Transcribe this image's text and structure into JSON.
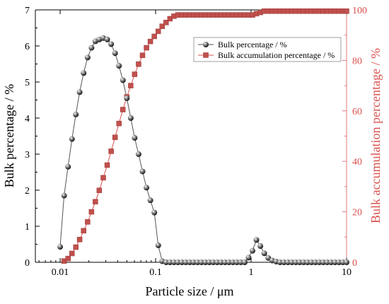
{
  "chart_data": {
    "type": "line",
    "xlabel": "Particle size / μm",
    "ylabel": "Bulk percentage / %",
    "ylabel_right": "Bulk accumulation percentage / %",
    "x_scale": "log",
    "xlim": [
      0.0055,
      10
    ],
    "ylim": [
      0,
      7
    ],
    "ylim_right": [
      0,
      100
    ],
    "x_ticks": [
      0.01,
      0.1,
      1,
      10
    ],
    "x_tick_labels": [
      "0.01",
      "0.1",
      "1",
      "10"
    ],
    "y_ticks": [
      0,
      1,
      2,
      3,
      4,
      5,
      6,
      7
    ],
    "y_tick_labels": [
      "0",
      "1",
      "2",
      "3",
      "4",
      "5",
      "6",
      "7"
    ],
    "y_right_ticks": [
      0,
      20,
      40,
      60,
      80,
      100
    ],
    "y_right_tick_labels": [
      "0",
      "20",
      "40",
      "60",
      "80",
      "100"
    ],
    "grid": false,
    "legend_position": "top-right",
    "series": [
      {
        "name": "Bulk percentage / %",
        "axis": "left",
        "color": "#555555",
        "marker": "sphere",
        "x": [
          0.01,
          0.011,
          0.0121,
          0.0133,
          0.0146,
          0.016,
          0.0176,
          0.0194,
          0.0213,
          0.0234,
          0.0257,
          0.0283,
          0.0311,
          0.0342,
          0.0376,
          0.0413,
          0.0454,
          0.0499,
          0.0549,
          0.0603,
          0.0663,
          0.0729,
          0.0802,
          0.0881,
          0.0969,
          0.1065,
          0.1171,
          0.1287,
          0.1415,
          0.1556,
          0.171,
          0.188,
          0.2067,
          0.2273,
          0.2499,
          0.2747,
          0.302,
          0.332,
          0.365,
          0.4013,
          0.4411,
          0.485,
          0.5332,
          0.5862,
          0.6444,
          0.7084,
          0.7788,
          0.8562,
          0.9412,
          1.0347,
          1.1375,
          1.2505,
          1.3748,
          1.5114,
          1.6616,
          1.8267,
          2.0082,
          2.2077,
          2.4271,
          2.6683,
          2.9334,
          3.2249,
          3.5453,
          3.8976,
          4.2849,
          4.7107,
          5.1788,
          5.6934,
          6.2591,
          6.8811,
          7.5648,
          8.3165,
          9.1429,
          10.0
        ],
        "y": [
          0.43,
          1.85,
          2.65,
          3.42,
          4.1,
          4.72,
          5.25,
          5.68,
          5.95,
          6.13,
          6.18,
          6.22,
          6.18,
          6.05,
          5.8,
          5.45,
          5.05,
          4.55,
          4.0,
          3.45,
          3.0,
          2.52,
          2.07,
          1.72,
          1.38,
          0.47,
          0.03,
          0,
          0,
          0,
          0,
          0,
          0,
          0,
          0,
          0,
          0,
          0,
          0,
          0,
          0,
          0,
          0,
          0,
          0,
          0,
          0,
          0,
          0.13,
          0.32,
          0.62,
          0.45,
          0.25,
          0.12,
          0.05,
          0.02,
          0,
          0,
          0,
          0,
          0,
          0,
          0,
          0,
          0,
          0,
          0,
          0,
          0,
          0,
          0,
          0,
          0,
          0
        ]
      },
      {
        "name": "Bulk accumulation percentage / %",
        "axis": "right",
        "color": "#d9534f",
        "marker": "square",
        "x": [
          0.011,
          0.0121,
          0.0133,
          0.0146,
          0.016,
          0.0176,
          0.0194,
          0.0213,
          0.0234,
          0.0257,
          0.0283,
          0.0311,
          0.0342,
          0.0376,
          0.0413,
          0.0454,
          0.0499,
          0.0549,
          0.0603,
          0.0663,
          0.0729,
          0.0802,
          0.0881,
          0.0969,
          0.1065,
          0.1171,
          0.1287,
          0.1415,
          0.1556,
          0.171,
          0.188,
          0.2067,
          0.2273,
          0.2499,
          0.2747,
          0.302,
          0.332,
          0.365,
          0.4013,
          0.4411,
          0.485,
          0.5332,
          0.5862,
          0.6444,
          0.7084,
          0.7788,
          0.8562,
          0.9412,
          1.0347,
          1.1375,
          1.2505,
          1.3748,
          1.5114,
          1.6616,
          1.8267,
          2.0082,
          2.2077,
          2.4271,
          2.6683,
          2.9334,
          3.2249,
          3.5453,
          3.8976,
          4.2849,
          4.7107,
          5.1788,
          5.6934,
          6.2591,
          6.8811,
          7.5648,
          8.3165,
          9.1429,
          10.0
        ],
        "y": [
          0.5,
          1.5,
          3.5,
          6.0,
          9.0,
          12.5,
          16.0,
          20.0,
          24.0,
          28.5,
          33.5,
          38.5,
          44.0,
          49.5,
          55.0,
          60.5,
          65.5,
          70.0,
          74.5,
          78.5,
          82.0,
          85.0,
          87.5,
          89.5,
          91.5,
          93.5,
          95.0,
          96.5,
          97.5,
          98.0,
          98.0,
          98.0,
          98.0,
          98.0,
          98.0,
          98.0,
          98.0,
          98.0,
          98.0,
          98.0,
          98.0,
          98.0,
          98.0,
          98.0,
          98.0,
          98.0,
          98.0,
          98.0,
          98.0,
          98.5,
          99.0,
          99.5,
          99.5,
          99.5,
          99.5,
          99.5,
          99.5,
          99.5,
          99.5,
          99.5,
          99.5,
          99.5,
          99.5,
          99.5,
          99.5,
          99.5,
          99.5,
          99.5,
          99.5,
          99.5,
          99.5,
          99.5,
          99.5
        ]
      }
    ]
  }
}
